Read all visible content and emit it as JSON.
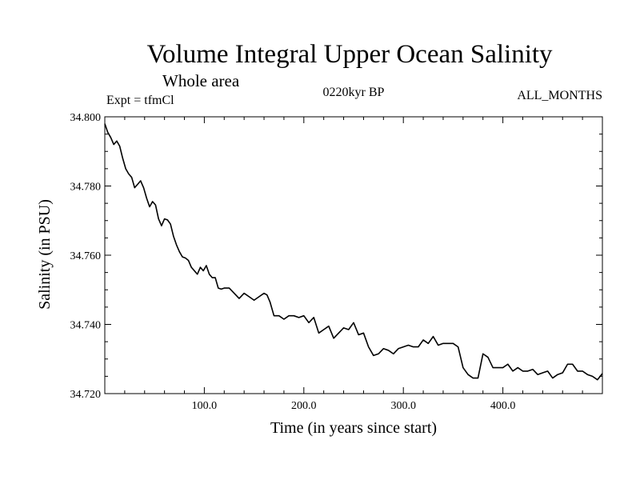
{
  "chart_data": {
    "type": "line",
    "title": "Volume Integral Upper Ocean Salinity",
    "subtitle": "Whole area",
    "experiment_label": "Expt = tfmCl",
    "period_label": "0220kyr BP",
    "months_label": "ALL_MONTHS",
    "xlabel": "Time (in years since start)",
    "ylabel": "Salinity (in PSU)",
    "xlim": [
      0,
      500
    ],
    "ylim": [
      34.72,
      34.8
    ],
    "x_ticks": [
      {
        "value": 100,
        "label": "100.0"
      },
      {
        "value": 200,
        "label": "200.0"
      },
      {
        "value": 300,
        "label": "300.0"
      },
      {
        "value": 400,
        "label": "400.0"
      }
    ],
    "y_ticks": [
      {
        "value": 34.72,
        "label": "34.720"
      },
      {
        "value": 34.74,
        "label": "34.740"
      },
      {
        "value": 34.76,
        "label": "34.760"
      },
      {
        "value": 34.78,
        "label": "34.780"
      },
      {
        "value": 34.8,
        "label": "34.800"
      }
    ],
    "grid": false,
    "line_color": "#000000",
    "series": [
      {
        "x": [
          0,
          3,
          6,
          9,
          12,
          15,
          18,
          21,
          24,
          27,
          30,
          33,
          36,
          39,
          42,
          45,
          48,
          51,
          54,
          57,
          60,
          63,
          66,
          69,
          72,
          75,
          78,
          81,
          84,
          87,
          90,
          93,
          96,
          99,
          102,
          105,
          108,
          111,
          114,
          117,
          120,
          125,
          130,
          135,
          140,
          145,
          150,
          155,
          160,
          163,
          166,
          170,
          175,
          180,
          185,
          190,
          195,
          200,
          205,
          210,
          215,
          220,
          225,
          230,
          235,
          240,
          245,
          250,
          255,
          260,
          265,
          270,
          275,
          280,
          285,
          290,
          295,
          300,
          305,
          310,
          315,
          320,
          325,
          330,
          335,
          340,
          345,
          350,
          355,
          360,
          365,
          370,
          375,
          380,
          385,
          390,
          395,
          400,
          405,
          410,
          415,
          420,
          425,
          430,
          435,
          440,
          445,
          450,
          455,
          460,
          465,
          470,
          475,
          480,
          485,
          490,
          495,
          500
        ],
        "y": [
          34.798,
          34.7955,
          34.794,
          34.792,
          34.793,
          34.7915,
          34.788,
          34.785,
          34.7835,
          34.7825,
          34.7795,
          34.7805,
          34.7815,
          34.7795,
          34.7765,
          34.774,
          34.7755,
          34.7745,
          34.7705,
          34.7685,
          34.7705,
          34.7702,
          34.769,
          34.7655,
          34.763,
          34.761,
          34.7595,
          34.7592,
          34.7585,
          34.7565,
          34.7555,
          34.7545,
          34.7565,
          34.7555,
          34.757,
          34.7545,
          34.7535,
          34.7535,
          34.7505,
          34.7502,
          34.7505,
          34.7505,
          34.749,
          34.7475,
          34.749,
          34.748,
          34.747,
          34.748,
          34.749,
          34.7485,
          34.7465,
          34.7425,
          34.7425,
          34.7415,
          34.7425,
          34.7425,
          34.742,
          34.7425,
          34.7405,
          34.742,
          34.7375,
          34.7385,
          34.7395,
          34.736,
          34.7375,
          34.739,
          34.7385,
          34.7405,
          34.737,
          34.7375,
          34.7335,
          34.731,
          34.7315,
          34.733,
          34.7325,
          34.7315,
          34.733,
          34.7335,
          34.734,
          34.7335,
          34.7335,
          34.7355,
          34.7345,
          34.7365,
          34.734,
          34.7345,
          34.7345,
          34.7345,
          34.7335,
          34.7275,
          34.7255,
          34.7245,
          34.7245,
          34.7315,
          34.7305,
          34.7275,
          34.7275,
          34.7275,
          34.7285,
          34.7265,
          34.7275,
          34.7265,
          34.7265,
          34.727,
          34.7255,
          34.726,
          34.7265,
          34.7245,
          34.7255,
          34.726,
          34.7285,
          34.7285,
          34.7265,
          34.7265,
          34.7255,
          34.725,
          34.724,
          34.7258
        ]
      }
    ]
  }
}
